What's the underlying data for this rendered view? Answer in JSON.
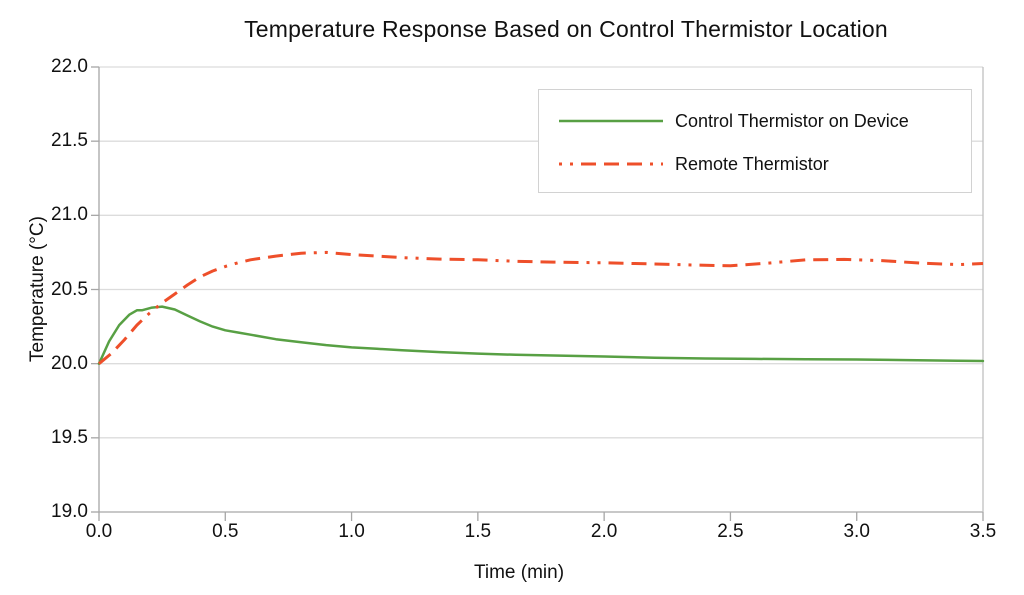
{
  "chart": {
    "title": "Temperature Response Based on Control Thermistor Location",
    "xlabel": "Time (min)",
    "ylabel": "Temperature (°C)"
  },
  "legend": {
    "items": [
      {
        "label": "Control Thermistor on Device",
        "color": "#58a044",
        "line_style": "solid"
      },
      {
        "label": "Remote Thermistor",
        "color": "#ee4f2a",
        "line_style": "dash-dot-dot"
      }
    ]
  },
  "colors": {
    "gridline": "#dcdcdc",
    "axis": "#a6a6a6",
    "plot_border": "#c0c0c0",
    "text": "#111111",
    "background": "#ffffff"
  },
  "chart_data": {
    "type": "line",
    "title": "Temperature Response Based on Control Thermistor Location",
    "xlabel": "Time (min)",
    "ylabel": "Temperature (°C)",
    "xlim": [
      0.0,
      3.5
    ],
    "ylim": [
      19.0,
      22.0
    ],
    "x_ticks": [
      "0.0",
      "0.5",
      "1.0",
      "1.5",
      "2.0",
      "2.5",
      "3.0",
      "3.5"
    ],
    "y_ticks": [
      "19.0",
      "19.5",
      "20.0",
      "20.5",
      "21.0",
      "21.5",
      "22.0"
    ],
    "grid": "horizontal-only",
    "legend_position": "top-right-inside",
    "series": [
      {
        "name": "Control Thermistor on Device",
        "color": "#58a044",
        "line_style": "solid",
        "points": [
          [
            0.0,
            20.0
          ],
          [
            0.04,
            20.15
          ],
          [
            0.08,
            20.26
          ],
          [
            0.12,
            20.33
          ],
          [
            0.15,
            20.36
          ],
          [
            0.17,
            20.36
          ],
          [
            0.21,
            20.378
          ],
          [
            0.25,
            20.385
          ],
          [
            0.3,
            20.365
          ],
          [
            0.35,
            20.325
          ],
          [
            0.4,
            20.285
          ],
          [
            0.45,
            20.25
          ],
          [
            0.5,
            20.225
          ],
          [
            0.55,
            20.21
          ],
          [
            0.6,
            20.195
          ],
          [
            0.7,
            20.165
          ],
          [
            0.8,
            20.145
          ],
          [
            0.9,
            20.125
          ],
          [
            1.0,
            20.11
          ],
          [
            1.1,
            20.1
          ],
          [
            1.2,
            20.09
          ],
          [
            1.35,
            20.078
          ],
          [
            1.5,
            20.068
          ],
          [
            1.65,
            20.06
          ],
          [
            1.8,
            20.055
          ],
          [
            2.0,
            20.048
          ],
          [
            2.2,
            20.04
          ],
          [
            2.4,
            20.035
          ],
          [
            2.6,
            20.032
          ],
          [
            2.8,
            20.03
          ],
          [
            3.0,
            20.028
          ],
          [
            3.2,
            20.024
          ],
          [
            3.4,
            20.02
          ],
          [
            3.5,
            20.018
          ]
        ]
      },
      {
        "name": "Remote Thermistor",
        "color": "#ee4f2a",
        "line_style": "dash-dot-dot",
        "points": [
          [
            0.0,
            20.0
          ],
          [
            0.05,
            20.07
          ],
          [
            0.1,
            20.16
          ],
          [
            0.15,
            20.26
          ],
          [
            0.2,
            20.34
          ],
          [
            0.25,
            20.41
          ],
          [
            0.3,
            20.47
          ],
          [
            0.35,
            20.53
          ],
          [
            0.4,
            20.585
          ],
          [
            0.45,
            20.625
          ],
          [
            0.5,
            20.655
          ],
          [
            0.55,
            20.68
          ],
          [
            0.6,
            20.7
          ],
          [
            0.7,
            20.725
          ],
          [
            0.8,
            20.745
          ],
          [
            0.9,
            20.75
          ],
          [
            1.0,
            20.735
          ],
          [
            1.1,
            20.725
          ],
          [
            1.2,
            20.715
          ],
          [
            1.35,
            20.705
          ],
          [
            1.5,
            20.7
          ],
          [
            1.65,
            20.69
          ],
          [
            1.8,
            20.685
          ],
          [
            2.0,
            20.68
          ],
          [
            2.2,
            20.672
          ],
          [
            2.35,
            20.665
          ],
          [
            2.5,
            20.66
          ],
          [
            2.65,
            20.678
          ],
          [
            2.8,
            20.7
          ],
          [
            2.95,
            20.703
          ],
          [
            3.1,
            20.695
          ],
          [
            3.25,
            20.678
          ],
          [
            3.4,
            20.668
          ],
          [
            3.5,
            20.675
          ]
        ]
      }
    ]
  }
}
